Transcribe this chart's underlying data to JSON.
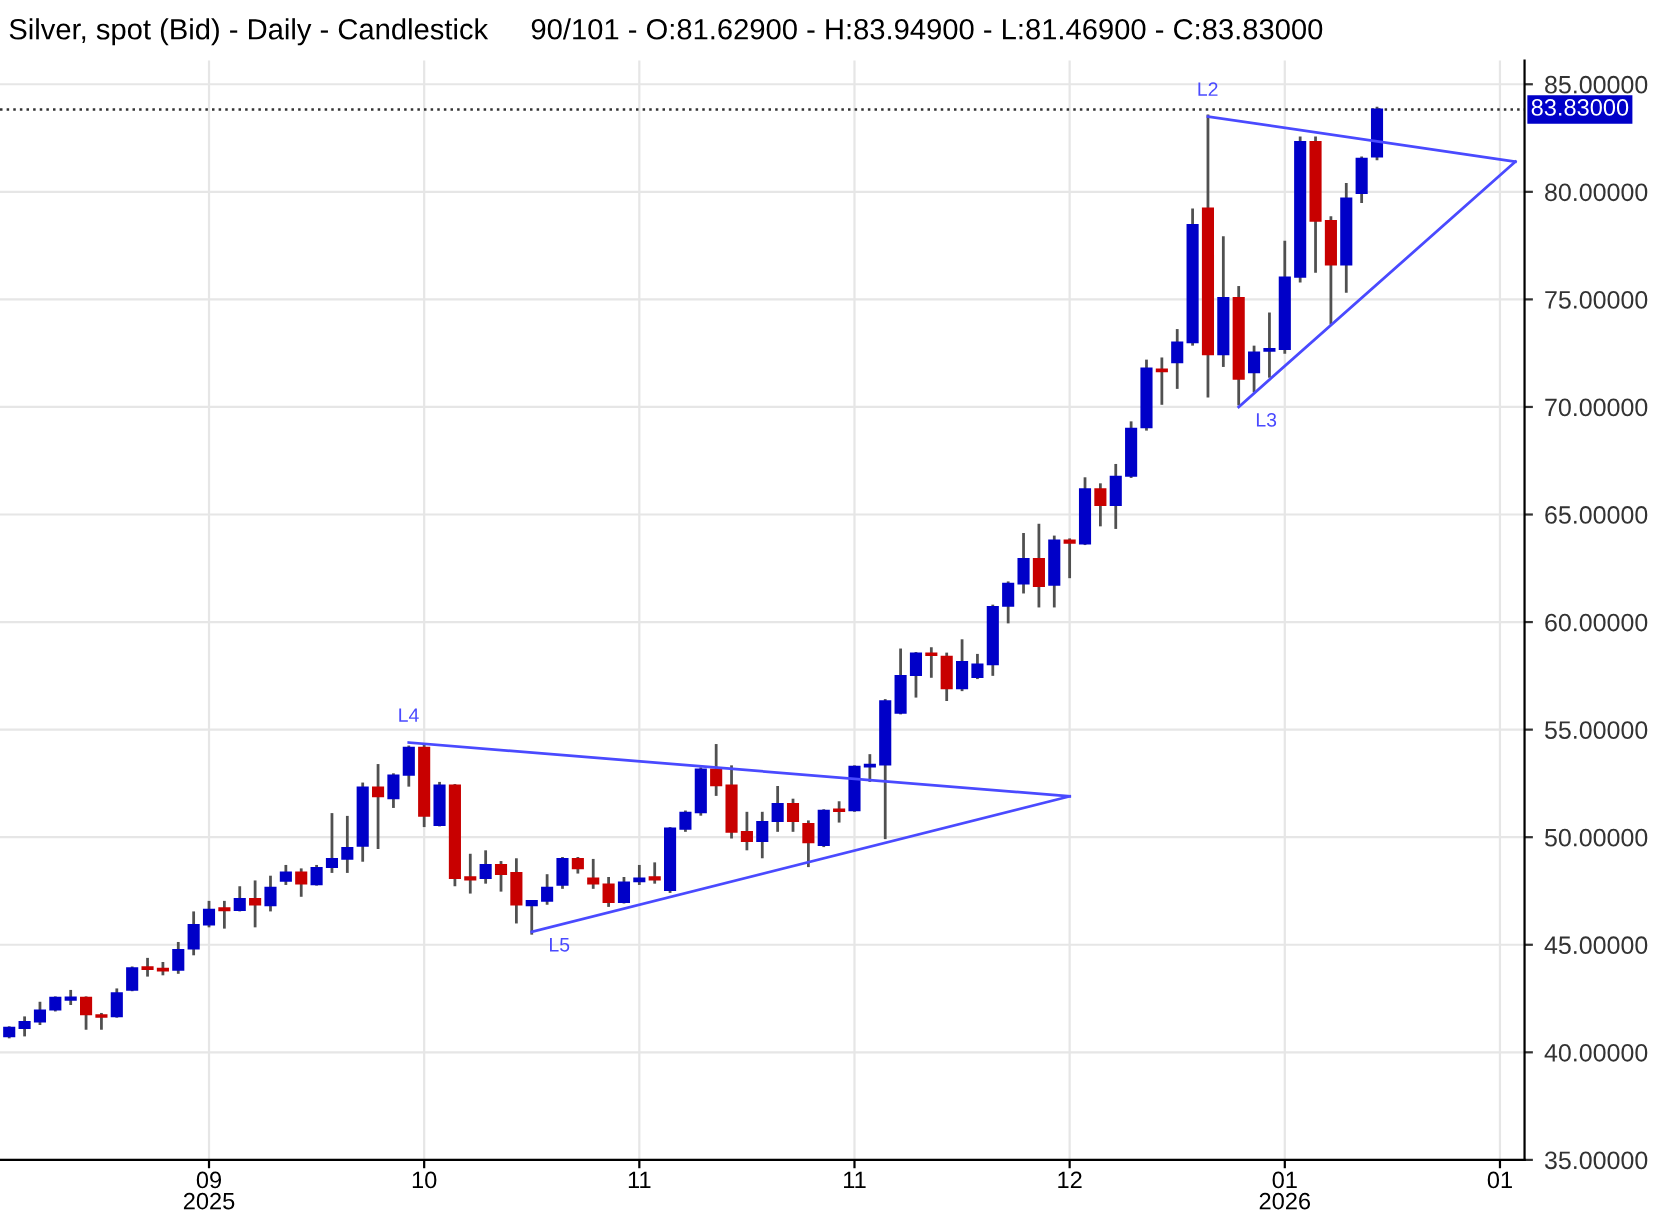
{
  "chart_data": {
    "type": "candlestick",
    "title": "Silver, spot (Bid) - Daily - Candlestick",
    "subtitle": "90/101 - O:81.62900 - H:83.94900 - L:81.46900 - C:83.83000",
    "categories": [
      null,
      null,
      null,
      null,
      null,
      null,
      null,
      null,
      null,
      null,
      null,
      null,
      null,
      "09\n2025",
      null,
      null,
      null,
      null,
      null,
      null,
      null,
      null,
      null,
      null,
      null,
      null,
      null,
      "10",
      null,
      null,
      null,
      null,
      null,
      null,
      null,
      null,
      null,
      null,
      null,
      null,
      null,
      "11",
      null,
      null,
      null,
      null,
      null,
      null,
      null,
      null,
      null,
      null,
      null,
      null,
      null,
      "11",
      null,
      null,
      null,
      null,
      null,
      null,
      null,
      null,
      null,
      null,
      null,
      null,
      null,
      "12",
      null,
      null,
      null,
      null,
      null,
      null,
      null,
      null,
      null,
      null,
      null,
      null,
      null,
      "01\n2026",
      null,
      null,
      null,
      null,
      null,
      null,
      null,
      null,
      null,
      null,
      null,
      null,
      null,
      "01",
      null,
      null
    ],
    "ohlc": [
      [
        40.74,
        41.21,
        40.65,
        41.15
      ],
      [
        41.12,
        41.67,
        40.74,
        41.42
      ],
      [
        41.42,
        42.35,
        41.27,
        41.95
      ],
      [
        41.98,
        42.6,
        41.9,
        42.54
      ],
      [
        42.44,
        42.9,
        42.2,
        42.56
      ],
      [
        42.54,
        42.6,
        41.05,
        41.76
      ],
      [
        41.73,
        41.83,
        41.05,
        41.64
      ],
      [
        41.67,
        42.97,
        41.61,
        42.75
      ],
      [
        42.9,
        43.99,
        42.84,
        43.92
      ],
      [
        43.96,
        44.39,
        43.52,
        43.86
      ],
      [
        43.89,
        44.2,
        43.58,
        43.8
      ],
      [
        43.83,
        45.13,
        43.65,
        44.76
      ],
      [
        44.82,
        46.55,
        44.51,
        45.93
      ],
      [
        45.93,
        47.04,
        45.81,
        46.64
      ],
      [
        46.7,
        47.04,
        45.75,
        46.6
      ],
      [
        46.61,
        47.72,
        46.55,
        47.13
      ],
      [
        47.13,
        47.99,
        45.81,
        46.86
      ],
      [
        46.83,
        48.21,
        46.55,
        47.66
      ],
      [
        47.97,
        48.71,
        47.78,
        48.37
      ],
      [
        48.37,
        48.55,
        47.23,
        47.84
      ],
      [
        47.81,
        48.71,
        47.75,
        48.58
      ],
      [
        48.61,
        51.12,
        48.34,
        48.99
      ],
      [
        48.99,
        50.99,
        48.34,
        49.51
      ],
      [
        49.6,
        52.54,
        48.86,
        52.32
      ],
      [
        52.32,
        53.4,
        49.45,
        51.89
      ],
      [
        51.8,
        52.97,
        51.36,
        52.87
      ],
      [
        52.9,
        54.26,
        52.35,
        54.17
      ],
      [
        54.17,
        54.33,
        50.47,
        50.99
      ],
      [
        50.56,
        52.57,
        50.5,
        52.41
      ],
      [
        52.41,
        52.47,
        47.72,
        48.09
      ],
      [
        48.15,
        49.23,
        47.38,
        48.03
      ],
      [
        48.09,
        49.39,
        47.84,
        48.71
      ],
      [
        48.71,
        48.89,
        47.47,
        48.28
      ],
      [
        48.34,
        49.02,
        45.99,
        46.86
      ],
      [
        46.83,
        47.07,
        45.47,
        47.04
      ],
      [
        47.04,
        48.28,
        46.86,
        47.66
      ],
      [
        47.78,
        49.08,
        47.6,
        48.99
      ],
      [
        48.99,
        49.08,
        48.31,
        48.55
      ],
      [
        48.09,
        48.99,
        47.6,
        47.84
      ],
      [
        47.81,
        48.15,
        46.76,
        46.98
      ],
      [
        46.98,
        48.15,
        46.92,
        47.9
      ],
      [
        47.94,
        48.71,
        47.78,
        48.09
      ],
      [
        48.15,
        48.83,
        47.84,
        48.03
      ],
      [
        47.54,
        50.47,
        47.41,
        50.41
      ],
      [
        50.38,
        51.24,
        50.25,
        51.15
      ],
      [
        51.15,
        53.25,
        51.0,
        53.15
      ],
      [
        53.15,
        54.33,
        51.92,
        52.41
      ],
      [
        52.41,
        53.34,
        49.94,
        50.25
      ],
      [
        50.25,
        51.18,
        49.39,
        49.82
      ],
      [
        49.82,
        51.18,
        49.02,
        50.71
      ],
      [
        50.75,
        52.38,
        50.25,
        51.55
      ],
      [
        51.55,
        51.79,
        50.25,
        50.75
      ],
      [
        50.62,
        50.78,
        48.61,
        49.76
      ],
      [
        49.63,
        51.3,
        49.54,
        51.24
      ],
      [
        51.3,
        51.67,
        50.68,
        51.21
      ],
      [
        51.24,
        53.34,
        51.18,
        53.28
      ],
      [
        53.28,
        53.86,
        52.57,
        53.37
      ],
      [
        53.37,
        56.42,
        49.91,
        56.33
      ],
      [
        55.78,
        58.77,
        55.71,
        57.5
      ],
      [
        57.53,
        58.61,
        56.49,
        58.55
      ],
      [
        58.55,
        58.83,
        57.41,
        58.46
      ],
      [
        58.4,
        58.58,
        56.33,
        56.92
      ],
      [
        56.92,
        59.2,
        56.79,
        58.15
      ],
      [
        57.44,
        58.52,
        57.35,
        58.03
      ],
      [
        58.03,
        60.81,
        57.5,
        60.71
      ],
      [
        60.75,
        61.89,
        59.94,
        61.79
      ],
      [
        61.79,
        64.14,
        61.33,
        62.94
      ],
      [
        62.94,
        64.57,
        60.68,
        61.67
      ],
      [
        61.73,
        64.02,
        60.68,
        63.8
      ],
      [
        63.8,
        63.89,
        62.04,
        63.68
      ],
      [
        63.65,
        66.73,
        63.58,
        66.18
      ],
      [
        66.18,
        66.45,
        64.45,
        65.44
      ],
      [
        65.44,
        67.35,
        64.33,
        66.76
      ],
      [
        66.79,
        69.33,
        66.7,
        68.99
      ],
      [
        69.05,
        72.2,
        68.9,
        71.8
      ],
      [
        71.75,
        72.3,
        70.1,
        71.65
      ],
      [
        72.07,
        73.62,
        70.84,
        73.0
      ],
      [
        73.0,
        79.23,
        72.85,
        78.46
      ],
      [
        79.23,
        83.59,
        70.44,
        72.44
      ],
      [
        72.44,
        77.94,
        71.86,
        75.07
      ],
      [
        75.07,
        75.62,
        70.07,
        71.3
      ],
      [
        71.61,
        72.85,
        70.68,
        72.54
      ],
      [
        72.6,
        74.39,
        71.36,
        72.7
      ],
      [
        72.69,
        77.72,
        72.47,
        76.02
      ],
      [
        76.05,
        82.57,
        75.78,
        82.32
      ],
      [
        82.32,
        82.57,
        76.24,
        78.65
      ],
      [
        78.65,
        78.86,
        73.83,
        76.61
      ],
      [
        76.61,
        80.41,
        75.31,
        79.7
      ],
      [
        79.94,
        81.64,
        79.48,
        81.55
      ],
      [
        81.629,
        83.949,
        81.469,
        83.83
      ],
      null,
      null,
      null,
      null,
      null,
      null,
      null,
      null,
      null,
      null
    ],
    "colors": [
      "#0000c8",
      "#0000c8",
      "#0000c8",
      "#0000c8",
      "#0000c8",
      "#c80000",
      "#c80000",
      "#0000c8",
      "#0000c8",
      "#c80000",
      "#c80000",
      "#0000c8",
      "#0000c8",
      "#0000c8",
      "#c80000",
      "#0000c8",
      "#c80000",
      "#0000c8",
      "#0000c8",
      "#c80000",
      "#0000c8",
      "#0000c8",
      "#0000c8",
      "#0000c8",
      "#c80000",
      "#0000c8",
      "#0000c8",
      "#c80000",
      "#0000c8",
      "#c80000",
      "#c80000",
      "#0000c8",
      "#c80000",
      "#c80000",
      "#0000c8",
      "#0000c8",
      "#0000c8",
      "#c80000",
      "#c80000",
      "#c80000",
      "#0000c8",
      "#0000c8",
      "#c80000",
      "#0000c8",
      "#0000c8",
      "#0000c8",
      "#c80000",
      "#c80000",
      "#c80000",
      "#0000c8",
      "#0000c8",
      "#c80000",
      "#c80000",
      "#0000c8",
      "#c80000",
      "#0000c8",
      "#0000c8",
      "#0000c8",
      "#0000c8",
      "#0000c8",
      "#c80000",
      "#c80000",
      "#0000c8",
      "#0000c8",
      "#0000c8",
      "#0000c8",
      "#0000c8",
      "#c80000",
      "#0000c8",
      "#c80000",
      "#0000c8",
      "#c80000",
      "#0000c8",
      "#0000c8",
      "#0000c8",
      "#c80000",
      "#0000c8",
      "#0000c8",
      "#c80000",
      "#0000c8",
      "#c80000",
      "#0000c8",
      "#0000c8",
      "#0000c8",
      "#0000c8",
      "#c80000",
      "#c80000",
      "#0000c8",
      "#0000c8",
      "#0000c8",
      null,
      null,
      null,
      null,
      null,
      null,
      null,
      null,
      null,
      null
    ],
    "series": [
      {
        "type": "line",
        "name": "L4",
        "color": "#4a4aff",
        "values": [
          null,
          null,
          null,
          null,
          null,
          null,
          null,
          null,
          null,
          null,
          null,
          null,
          null,
          null,
          null,
          null,
          null,
          null,
          null,
          null,
          null,
          null,
          null,
          null,
          null,
          null,
          54.4,
          null,
          null,
          null,
          null,
          null,
          null,
          null,
          null,
          null,
          null,
          null,
          null,
          null,
          null,
          null,
          null,
          null,
          null,
          null,
          null,
          null,
          null,
          null,
          null,
          null,
          null,
          null,
          null,
          null,
          null,
          null,
          null,
          null,
          null,
          null,
          null,
          null,
          null,
          null,
          null,
          null,
          null,
          51.9,
          null,
          null,
          null,
          null,
          null,
          null,
          null,
          null,
          null,
          null,
          null,
          null,
          null,
          null,
          null,
          null,
          null,
          null,
          null,
          null,
          null,
          null,
          null,
          null,
          null,
          null,
          null,
          null,
          null,
          null
        ]
      },
      {
        "type": "line",
        "name": "L5",
        "color": "#4a4aff",
        "values": [
          null,
          null,
          null,
          null,
          null,
          null,
          null,
          null,
          null,
          null,
          null,
          null,
          null,
          null,
          null,
          null,
          null,
          null,
          null,
          null,
          null,
          null,
          null,
          null,
          null,
          null,
          null,
          null,
          null,
          null,
          null,
          null,
          null,
          null,
          45.6,
          null,
          null,
          null,
          null,
          null,
          null,
          null,
          null,
          null,
          null,
          null,
          null,
          null,
          null,
          null,
          null,
          null,
          null,
          null,
          null,
          null,
          null,
          null,
          null,
          null,
          null,
          null,
          null,
          null,
          null,
          null,
          null,
          null,
          null,
          51.9,
          null,
          null,
          null,
          null,
          null,
          null,
          null,
          null,
          null,
          null,
          null,
          null,
          null,
          null,
          null,
          null,
          null,
          null,
          null,
          null,
          null,
          null,
          null,
          null,
          null,
          null,
          null,
          null,
          null,
          null
        ]
      },
      {
        "type": "line",
        "name": "L2",
        "color": "#4a4aff",
        "values": [
          null,
          null,
          null,
          null,
          null,
          null,
          null,
          null,
          null,
          null,
          null,
          null,
          null,
          null,
          null,
          null,
          null,
          null,
          null,
          null,
          null,
          null,
          null,
          null,
          null,
          null,
          null,
          null,
          null,
          null,
          null,
          null,
          null,
          null,
          null,
          null,
          null,
          null,
          null,
          null,
          null,
          null,
          null,
          null,
          null,
          null,
          null,
          null,
          null,
          null,
          null,
          null,
          null,
          null,
          null,
          null,
          null,
          null,
          null,
          null,
          null,
          null,
          null,
          null,
          null,
          null,
          null,
          null,
          null,
          null,
          null,
          null,
          null,
          null,
          null,
          null,
          null,
          null,
          83.5,
          null,
          null,
          null,
          null,
          null,
          null,
          null,
          null,
          null,
          null,
          null,
          null,
          null,
          null,
          null,
          null,
          null,
          null,
          null,
          81.4,
          null
        ]
      },
      {
        "type": "line",
        "name": "L3",
        "color": "#4a4aff",
        "values": [
          null,
          null,
          null,
          null,
          null,
          null,
          null,
          null,
          null,
          null,
          null,
          null,
          null,
          null,
          null,
          null,
          null,
          null,
          null,
          null,
          null,
          null,
          null,
          null,
          null,
          null,
          null,
          null,
          null,
          null,
          null,
          null,
          null,
          null,
          null,
          null,
          null,
          null,
          null,
          null,
          null,
          null,
          null,
          null,
          null,
          null,
          null,
          null,
          null,
          null,
          null,
          null,
          null,
          null,
          null,
          null,
          null,
          null,
          null,
          null,
          null,
          null,
          null,
          null,
          null,
          null,
          null,
          null,
          null,
          null,
          null,
          null,
          null,
          null,
          null,
          null,
          null,
          null,
          null,
          null,
          70.0,
          null,
          null,
          null,
          null,
          null,
          null,
          null,
          null,
          null,
          null,
          null,
          null,
          null,
          null,
          null,
          null,
          null,
          81.4,
          null
        ]
      }
    ],
    "ylim": [
      35,
      86.1
    ],
    "yticks": [
      {
        "value": 35,
        "label": "35.00000"
      },
      {
        "value": 40,
        "label": "40.00000"
      },
      {
        "value": 45,
        "label": "45.00000"
      },
      {
        "value": 50,
        "label": "50.00000"
      },
      {
        "value": 55,
        "label": "55.00000"
      },
      {
        "value": 60,
        "label": "60.00000"
      },
      {
        "value": 65,
        "label": "65.00000"
      },
      {
        "value": 70,
        "label": "70.00000"
      },
      {
        "value": 75,
        "label": "75.00000"
      },
      {
        "value": 80,
        "label": "80.00000"
      },
      {
        "value": 85,
        "label": "85.00000"
      }
    ],
    "ref_lines": [
      {
        "axis": "y",
        "value": 83.83,
        "label": "83.83000",
        "color": "#333333",
        "line_style": "dotted"
      }
    ],
    "grid": true
  }
}
